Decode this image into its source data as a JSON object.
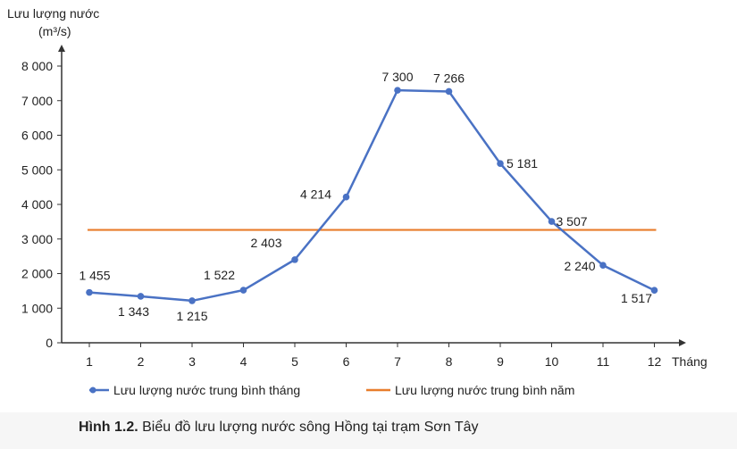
{
  "chart_data": {
    "type": "line",
    "ylabel_line1": "Lưu lượng nước",
    "ylabel_line2": "(m³/s)",
    "xlabel": "Tháng",
    "categories": [
      "1",
      "2",
      "3",
      "4",
      "5",
      "6",
      "7",
      "8",
      "9",
      "10",
      "11",
      "12"
    ],
    "yticks": [
      "0",
      "1 000",
      "2 000",
      "3 000",
      "4 000",
      "5 000",
      "6 000",
      "7 000",
      "8 000"
    ],
    "ylim": [
      0,
      8000
    ],
    "series": [
      {
        "name": "Lưu lượng nước trung bình tháng",
        "color": "#4a72c4",
        "values": [
          1455,
          1343,
          1215,
          1522,
          2403,
          4214,
          7300,
          7266,
          5181,
          3507,
          2240,
          1517
        ],
        "labels": [
          "1 455",
          "1 343",
          "1 215",
          "1 522",
          "2 403",
          "4 214",
          "7 300",
          "7 266",
          "5 181",
          "3 507",
          "2 240",
          "1 517"
        ]
      },
      {
        "name": "Lưu lượng nước trung bình năm",
        "color": "#e87d2c",
        "value": 3263
      }
    ],
    "grid": false,
    "legend_position": "bottom"
  },
  "caption": {
    "prefix": "Hình 1.2.",
    "text": " Biểu đồ lưu lượng nước sông Hồng tại trạm Sơn Tây"
  }
}
